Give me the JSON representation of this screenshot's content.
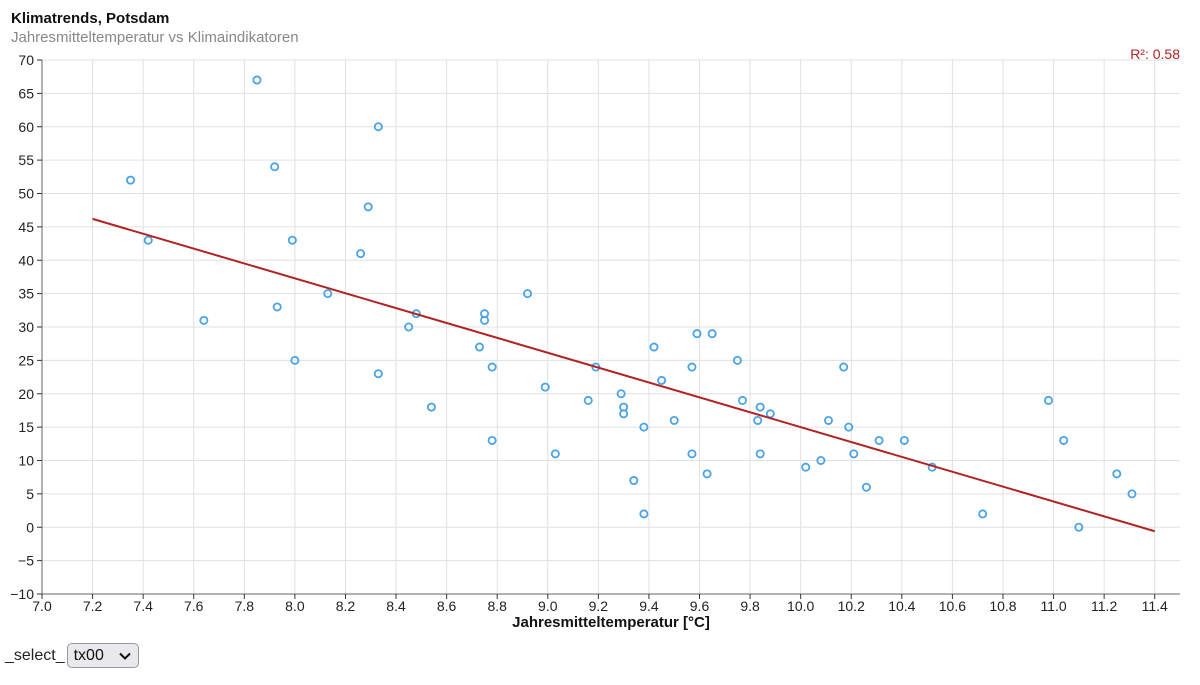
{
  "chart_data": {
    "type": "scatter",
    "title": "Klimatrends, Potsdam",
    "subtitle": "Jahresmitteltemperatur vs Klimaindikatoren",
    "xlabel": "Jahresmitteltemperatur [°C]",
    "ylabel": "",
    "xlim": [
      7.0,
      11.5
    ],
    "ylim": [
      -10,
      70
    ],
    "xticks": [
      "7.0",
      "7.2",
      "7.4",
      "7.6",
      "7.8",
      "8.0",
      "8.2",
      "8.4",
      "8.6",
      "8.8",
      "9.0",
      "9.2",
      "9.4",
      "9.6",
      "9.8",
      "10.0",
      "10.2",
      "10.4",
      "10.6",
      "10.8",
      "11.0",
      "11.2",
      "11.4"
    ],
    "yticks": [
      "70",
      "65",
      "60",
      "55",
      "50",
      "45",
      "40",
      "35",
      "30",
      "25",
      "20",
      "15",
      "10",
      "5",
      "0",
      "−5",
      "−10"
    ],
    "grid": true,
    "r2_label": "R²: 0.58",
    "points": [
      {
        "x": 7.35,
        "y": 52
      },
      {
        "x": 7.42,
        "y": 43
      },
      {
        "x": 7.64,
        "y": 31
      },
      {
        "x": 7.85,
        "y": 67
      },
      {
        "x": 7.92,
        "y": 54
      },
      {
        "x": 7.93,
        "y": 33
      },
      {
        "x": 7.99,
        "y": 43
      },
      {
        "x": 8.0,
        "y": 25
      },
      {
        "x": 8.13,
        "y": 35
      },
      {
        "x": 8.26,
        "y": 41
      },
      {
        "x": 8.29,
        "y": 48
      },
      {
        "x": 8.33,
        "y": 60
      },
      {
        "x": 8.33,
        "y": 23
      },
      {
        "x": 8.45,
        "y": 30
      },
      {
        "x": 8.48,
        "y": 32
      },
      {
        "x": 8.54,
        "y": 18
      },
      {
        "x": 8.73,
        "y": 27
      },
      {
        "x": 8.75,
        "y": 32
      },
      {
        "x": 8.75,
        "y": 31
      },
      {
        "x": 8.78,
        "y": 24
      },
      {
        "x": 8.78,
        "y": 13
      },
      {
        "x": 8.92,
        "y": 35
      },
      {
        "x": 8.99,
        "y": 21
      },
      {
        "x": 9.03,
        "y": 11
      },
      {
        "x": 9.16,
        "y": 19
      },
      {
        "x": 9.19,
        "y": 24
      },
      {
        "x": 9.29,
        "y": 20
      },
      {
        "x": 9.3,
        "y": 18
      },
      {
        "x": 9.3,
        "y": 17
      },
      {
        "x": 9.34,
        "y": 7
      },
      {
        "x": 9.38,
        "y": 15
      },
      {
        "x": 9.38,
        "y": 2
      },
      {
        "x": 9.42,
        "y": 27
      },
      {
        "x": 9.45,
        "y": 22
      },
      {
        "x": 9.5,
        "y": 16
      },
      {
        "x": 9.57,
        "y": 24
      },
      {
        "x": 9.57,
        "y": 11
      },
      {
        "x": 9.59,
        "y": 29
      },
      {
        "x": 9.63,
        "y": 8
      },
      {
        "x": 9.65,
        "y": 29
      },
      {
        "x": 9.75,
        "y": 25
      },
      {
        "x": 9.77,
        "y": 19
      },
      {
        "x": 9.83,
        "y": 16
      },
      {
        "x": 9.84,
        "y": 18
      },
      {
        "x": 9.84,
        "y": 11
      },
      {
        "x": 9.88,
        "y": 17
      },
      {
        "x": 10.02,
        "y": 9
      },
      {
        "x": 10.08,
        "y": 10
      },
      {
        "x": 10.11,
        "y": 16
      },
      {
        "x": 10.17,
        "y": 24
      },
      {
        "x": 10.19,
        "y": 15
      },
      {
        "x": 10.21,
        "y": 11
      },
      {
        "x": 10.26,
        "y": 6
      },
      {
        "x": 10.31,
        "y": 13
      },
      {
        "x": 10.41,
        "y": 13
      },
      {
        "x": 10.52,
        "y": 9
      },
      {
        "x": 10.72,
        "y": 2
      },
      {
        "x": 10.98,
        "y": 19
      },
      {
        "x": 11.04,
        "y": 13
      },
      {
        "x": 11.1,
        "y": 0
      },
      {
        "x": 11.25,
        "y": 8
      },
      {
        "x": 11.31,
        "y": 5
      }
    ],
    "trendline": {
      "x1": 7.2,
      "y1": 46.2,
      "x2": 11.4,
      "y2": -0.6
    }
  },
  "colors": {
    "point": "#4aa3e8",
    "trend": "#b22222",
    "grid": "#e0e0e0",
    "axis": "#333333"
  },
  "controls": {
    "select_label": "_select_",
    "selected_value": "tx00",
    "icon": "chevron-down-icon"
  }
}
